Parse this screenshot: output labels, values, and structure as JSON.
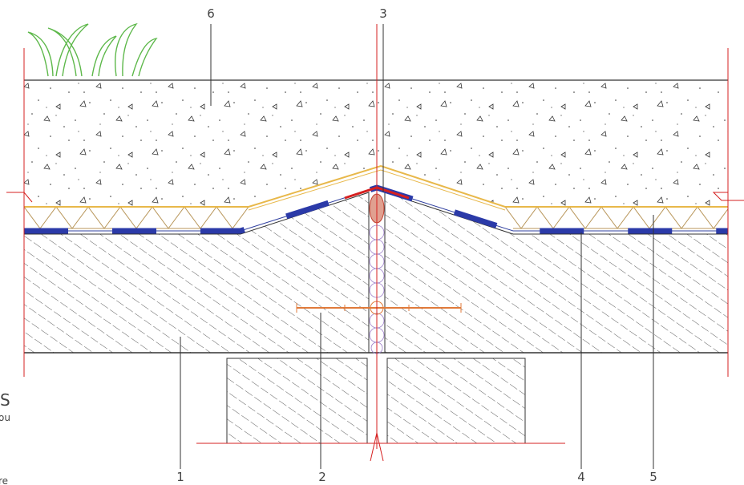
{
  "callouts": {
    "concrete_top": "6",
    "joint_seal": "3",
    "slab": "1",
    "dowel": "2",
    "membrane": "4",
    "insulation": "5"
  },
  "cropped_text": {
    "heading": "S",
    "line_1": "ou",
    "line_2": "re"
  }
}
